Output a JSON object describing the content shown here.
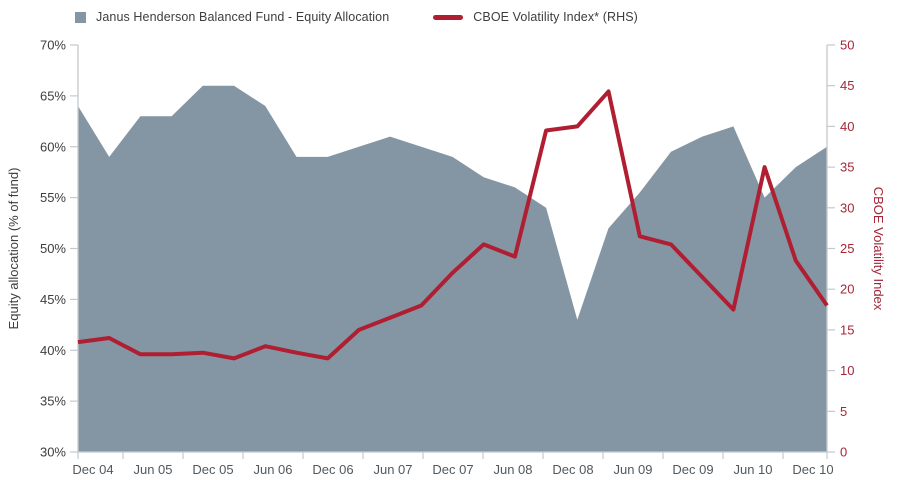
{
  "legend": [
    {
      "label": "Janus Henderson Balanced Fund - Equity Allocation",
      "marker": "square",
      "color": "#8496a3"
    },
    {
      "label": "CBOE Volatility Index* (RHS)",
      "marker": "line",
      "color": "#b01e32"
    }
  ],
  "left_axis": {
    "title": "Equity allocation (% of fund)",
    "ticks": [
      "70%",
      "65%",
      "60%",
      "55%",
      "50%",
      "45%",
      "40%",
      "35%",
      "30%"
    ],
    "max": 70,
    "min": 30,
    "text_color": "#3d3d3d"
  },
  "right_axis": {
    "title": "CBOE Volatility Index",
    "ticks": [
      "50",
      "45",
      "40",
      "35",
      "30",
      "25",
      "20",
      "15",
      "10",
      "5",
      "0"
    ],
    "max": 50,
    "min": 0,
    "text_color": "#a52638"
  },
  "x_axis": {
    "labels": [
      "Dec 04",
      "Jun 05",
      "Dec 05",
      "Jun 06",
      "Dec 06",
      "Jun 07",
      "Dec 07",
      "Jun 08",
      "Dec 08",
      "Jun 09",
      "Dec 09",
      "Jun 10",
      "Dec 10"
    ],
    "text_color": "#4e585f"
  },
  "chart_data": {
    "type": "combo",
    "x": [
      "Dec 04",
      "Mar 05",
      "Jun 05",
      "Sep 05",
      "Dec 05",
      "Mar 06",
      "Jun 06",
      "Sep 06",
      "Dec 06",
      "Mar 07",
      "Jun 07",
      "Sep 07",
      "Dec 07",
      "Mar 08",
      "Jun 08",
      "Sep 08",
      "Dec 08",
      "Mar 09",
      "Jun 09",
      "Sep 09",
      "Dec 09",
      "Mar 10",
      "Jun 10",
      "Sep 10",
      "Dec 10"
    ],
    "series": [
      {
        "name": "Janus Henderson Balanced Fund - Equity Allocation",
        "type": "area",
        "axis": "left",
        "unit": "% of fund",
        "color": "#8496a3",
        "values": [
          64,
          59,
          63,
          63,
          66,
          66,
          64,
          59,
          59,
          60,
          61,
          60,
          59,
          57,
          56,
          54,
          43,
          52,
          55.5,
          59.5,
          61,
          62,
          55,
          58,
          60
        ]
      },
      {
        "name": "CBOE Volatility Index* (RHS)",
        "type": "line",
        "axis": "right",
        "unit": "index",
        "color": "#b01e32",
        "values": [
          13.5,
          14,
          12,
          12,
          12.2,
          11.5,
          13,
          12.2,
          11.5,
          15,
          16.5,
          18,
          22,
          25.5,
          24,
          39.5,
          40,
          44.3,
          26.5,
          25.5,
          21.5,
          17.5,
          35,
          23.5,
          18
        ]
      }
    ],
    "left_ylim": [
      30,
      70
    ],
    "right_ylim": [
      0,
      50
    ],
    "grid": false,
    "legend_position": "top-left"
  },
  "style": {
    "axis_line_color": "#c4c9cd",
    "background": "#ffffff"
  }
}
